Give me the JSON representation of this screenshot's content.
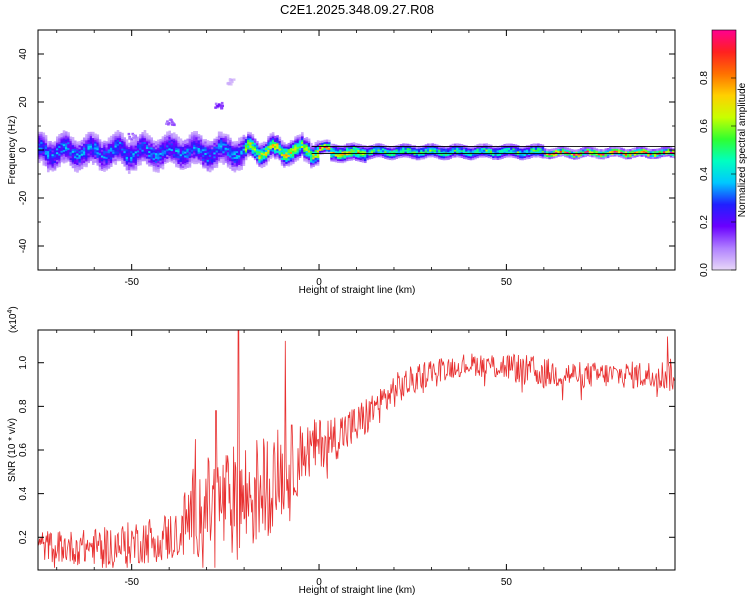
{
  "figure": {
    "title": "C2E1.2025.348.09.27.R08",
    "colors": {
      "snr_line": "#e83030",
      "axis": "#000000",
      "background": "#ffffff"
    }
  },
  "chart_data": [
    {
      "type": "heatmap",
      "name": "spectrogram",
      "title": "C2E1.2025.348.09.27.R08",
      "xlabel": "Height of straight line (km)",
      "ylabel": "Frequency (Hz)",
      "xlim": [
        -75,
        95
      ],
      "ylim": [
        -50,
        50
      ],
      "xticks": [
        -50,
        0,
        50
      ],
      "yticks": [
        -40,
        -20,
        0,
        20,
        40
      ],
      "grid": false,
      "reference_lines_hz": [
        1.5,
        -1.5
      ],
      "band_segments": [
        {
          "x_start": -75,
          "x_end": -20,
          "center_hz": -1,
          "halfwidth_hz": 6,
          "peak_amp": 0.35
        },
        {
          "x_start": -20,
          "x_end": 0,
          "center_hz": -0.5,
          "halfwidth_hz": 4,
          "peak_amp": 0.7
        },
        {
          "x_start": 0,
          "x_end": 3,
          "center_hz": 0.5,
          "halfwidth_hz": 2,
          "peak_amp": 0.95
        },
        {
          "x_start": 3,
          "x_end": 12,
          "center_hz": -1.5,
          "halfwidth_hz": 3,
          "peak_amp": 0.75
        },
        {
          "x_start": 12,
          "x_end": 60,
          "center_hz": -1,
          "halfwidth_hz": 2.5,
          "peak_amp": 0.55
        },
        {
          "x_start": 60,
          "x_end": 95,
          "center_hz": -1.5,
          "halfwidth_hz": 1.5,
          "peak_amp": 0.95
        }
      ],
      "blobs": [
        {
          "x": -27,
          "hz": 19,
          "amp": 0.15
        },
        {
          "x": -40,
          "hz": 12,
          "amp": 0.12
        },
        {
          "x": -50,
          "hz": 6,
          "amp": 0.1
        },
        {
          "x": -24,
          "hz": 29,
          "amp": 0.04
        }
      ]
    },
    {
      "type": "colorbar",
      "name": "amplitude-colorbar",
      "label": "Normalized spectral amplitude",
      "range": [
        0.0,
        1.0
      ],
      "ticks": [
        0.0,
        0.2,
        0.4,
        0.6,
        0.8
      ],
      "tick_labels": [
        "0.0",
        "0.2",
        "0.4",
        "0.6",
        "0.8"
      ],
      "colormap": [
        "#e8d8f8",
        "#b080ff",
        "#6a00ff",
        "#2020ff",
        "#00c8ff",
        "#00ffc0",
        "#30ff30",
        "#c8ff00",
        "#ffd000",
        "#ff7000",
        "#ff2020",
        "#ff0090"
      ]
    },
    {
      "type": "line",
      "name": "snr-trace",
      "xlabel": "Height of straight line (km)",
      "ylabel": "SNR (10 * v/v)",
      "exponent_label": "(x10",
      "exponent_power": "4",
      "exponent_close": ")",
      "xlim": [
        -75,
        95
      ],
      "ylim": [
        0.05,
        1.15
      ],
      "xticks": [
        -50,
        0,
        50
      ],
      "yticks": [
        0.2,
        0.4,
        0.6,
        0.8,
        1.0
      ],
      "ytick_labels": [
        "0.2",
        "0.4",
        "0.6",
        "0.8",
        "1.0"
      ],
      "grid": false,
      "envelope": [
        {
          "x": -75,
          "base": 0.17,
          "noise": 0.07
        },
        {
          "x": -65,
          "base": 0.16,
          "noise": 0.08
        },
        {
          "x": -55,
          "base": 0.17,
          "noise": 0.09
        },
        {
          "x": -45,
          "base": 0.2,
          "noise": 0.11
        },
        {
          "x": -38,
          "base": 0.22,
          "noise": 0.12
        },
        {
          "x": -33,
          "base": 0.35,
          "noise": 0.22
        },
        {
          "x": -25,
          "base": 0.38,
          "noise": 0.25
        },
        {
          "x": -20,
          "base": 0.4,
          "noise": 0.28
        },
        {
          "x": -15,
          "base": 0.45,
          "noise": 0.25
        },
        {
          "x": -10,
          "base": 0.52,
          "noise": 0.22
        },
        {
          "x": -5,
          "base": 0.58,
          "noise": 0.16
        },
        {
          "x": 0,
          "base": 0.64,
          "noise": 0.12
        },
        {
          "x": 10,
          "base": 0.72,
          "noise": 0.1
        },
        {
          "x": 20,
          "base": 0.88,
          "noise": 0.08
        },
        {
          "x": 30,
          "base": 0.97,
          "noise": 0.06
        },
        {
          "x": 40,
          "base": 1.0,
          "noise": 0.05
        },
        {
          "x": 50,
          "base": 0.99,
          "noise": 0.07
        },
        {
          "x": 60,
          "base": 0.96,
          "noise": 0.07
        },
        {
          "x": 70,
          "base": 0.95,
          "noise": 0.06
        },
        {
          "x": 80,
          "base": 0.95,
          "noise": 0.06
        },
        {
          "x": 90,
          "base": 0.95,
          "noise": 0.07
        },
        {
          "x": 95,
          "base": 0.95,
          "noise": 0.08
        }
      ],
      "spikes": [
        {
          "x": -21.5,
          "y": 1.15
        },
        {
          "x": -27.5,
          "y": 0.78
        },
        {
          "x": -9,
          "y": 1.1
        },
        {
          "x": 93,
          "y": 1.12
        },
        {
          "x": -33,
          "y": 0.65
        }
      ]
    }
  ]
}
